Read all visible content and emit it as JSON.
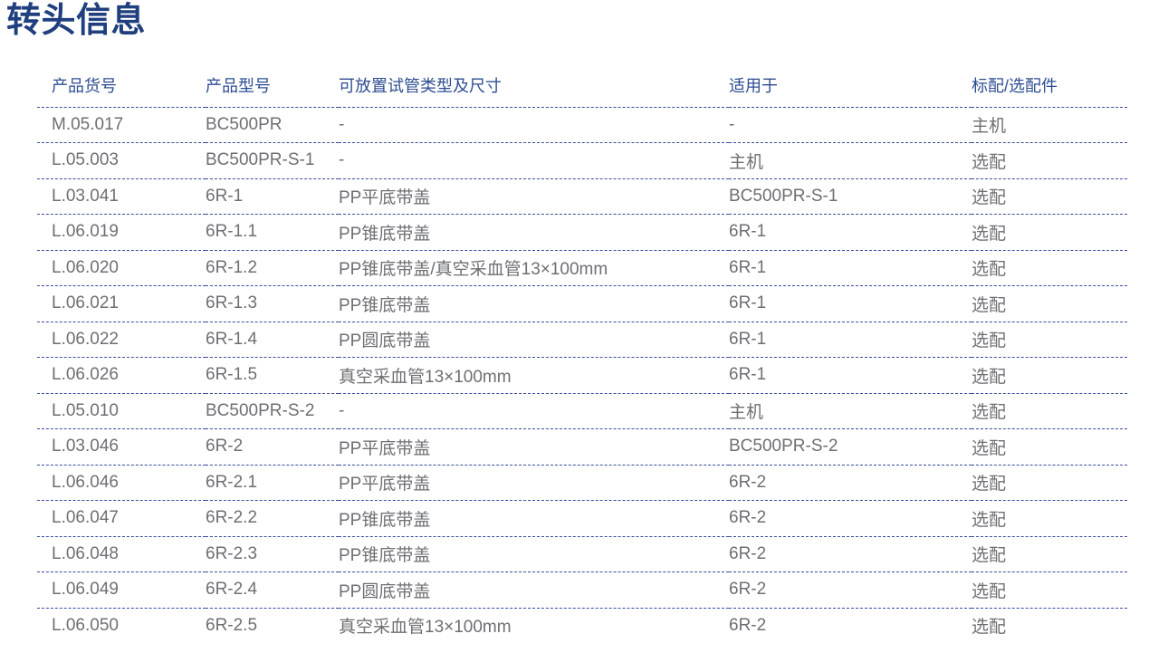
{
  "page": {
    "title": "转头信息"
  },
  "colors": {
    "background": "#ffffff",
    "title": "#203f7f",
    "header": "#2d4d92",
    "body_text": "#6e6f71",
    "divider": "#3a4d9b"
  },
  "table": {
    "columns": [
      "产品货号",
      "产品型号",
      "可放置试管类型及尺寸",
      "适用于",
      "标配/选配件"
    ],
    "column_keys": [
      "item-no",
      "model",
      "tube-types",
      "applicable-to",
      "standard-optional"
    ],
    "rows": [
      [
        "M.05.017",
        "BC500PR",
        "-",
        "-",
        "主机"
      ],
      [
        "L.05.003",
        "BC500PR-S-1",
        "-",
        "主机",
        "选配"
      ],
      [
        "L.03.041",
        "6R-1",
        "PP平底带盖",
        "BC500PR-S-1",
        "选配"
      ],
      [
        "L.06.019",
        "6R-1.1",
        "PP锥底带盖",
        "6R-1",
        "选配"
      ],
      [
        "L.06.020",
        "6R-1.2",
        "PP锥底带盖/真空采血管13×100mm",
        "6R-1",
        "选配"
      ],
      [
        "L.06.021",
        "6R-1.3",
        "PP锥底带盖",
        "6R-1",
        "选配"
      ],
      [
        "L.06.022",
        "6R-1.4",
        "PP圆底带盖",
        "6R-1",
        "选配"
      ],
      [
        "L.06.026",
        "6R-1.5",
        "真空采血管13×100mm",
        "6R-1",
        "选配"
      ],
      [
        "L.05.010",
        "BC500PR-S-2",
        "-",
        "主机",
        "选配"
      ],
      [
        "L.03.046",
        "6R-2",
        "PP平底带盖",
        "BC500PR-S-2",
        "选配"
      ],
      [
        "L.06.046",
        "6R-2.1",
        "PP平底带盖",
        "6R-2",
        "选配"
      ],
      [
        "L.06.047",
        "6R-2.2",
        "PP锥底带盖",
        "6R-2",
        "选配"
      ],
      [
        "L.06.048",
        "6R-2.3",
        "PP锥底带盖",
        "6R-2",
        "选配"
      ],
      [
        "L.06.049",
        "6R-2.4",
        "PP圆底带盖",
        "6R-2",
        "选配"
      ],
      [
        "L.06.050",
        "6R-2.5",
        "真空采血管13×100mm",
        "6R-2",
        "选配"
      ]
    ]
  }
}
